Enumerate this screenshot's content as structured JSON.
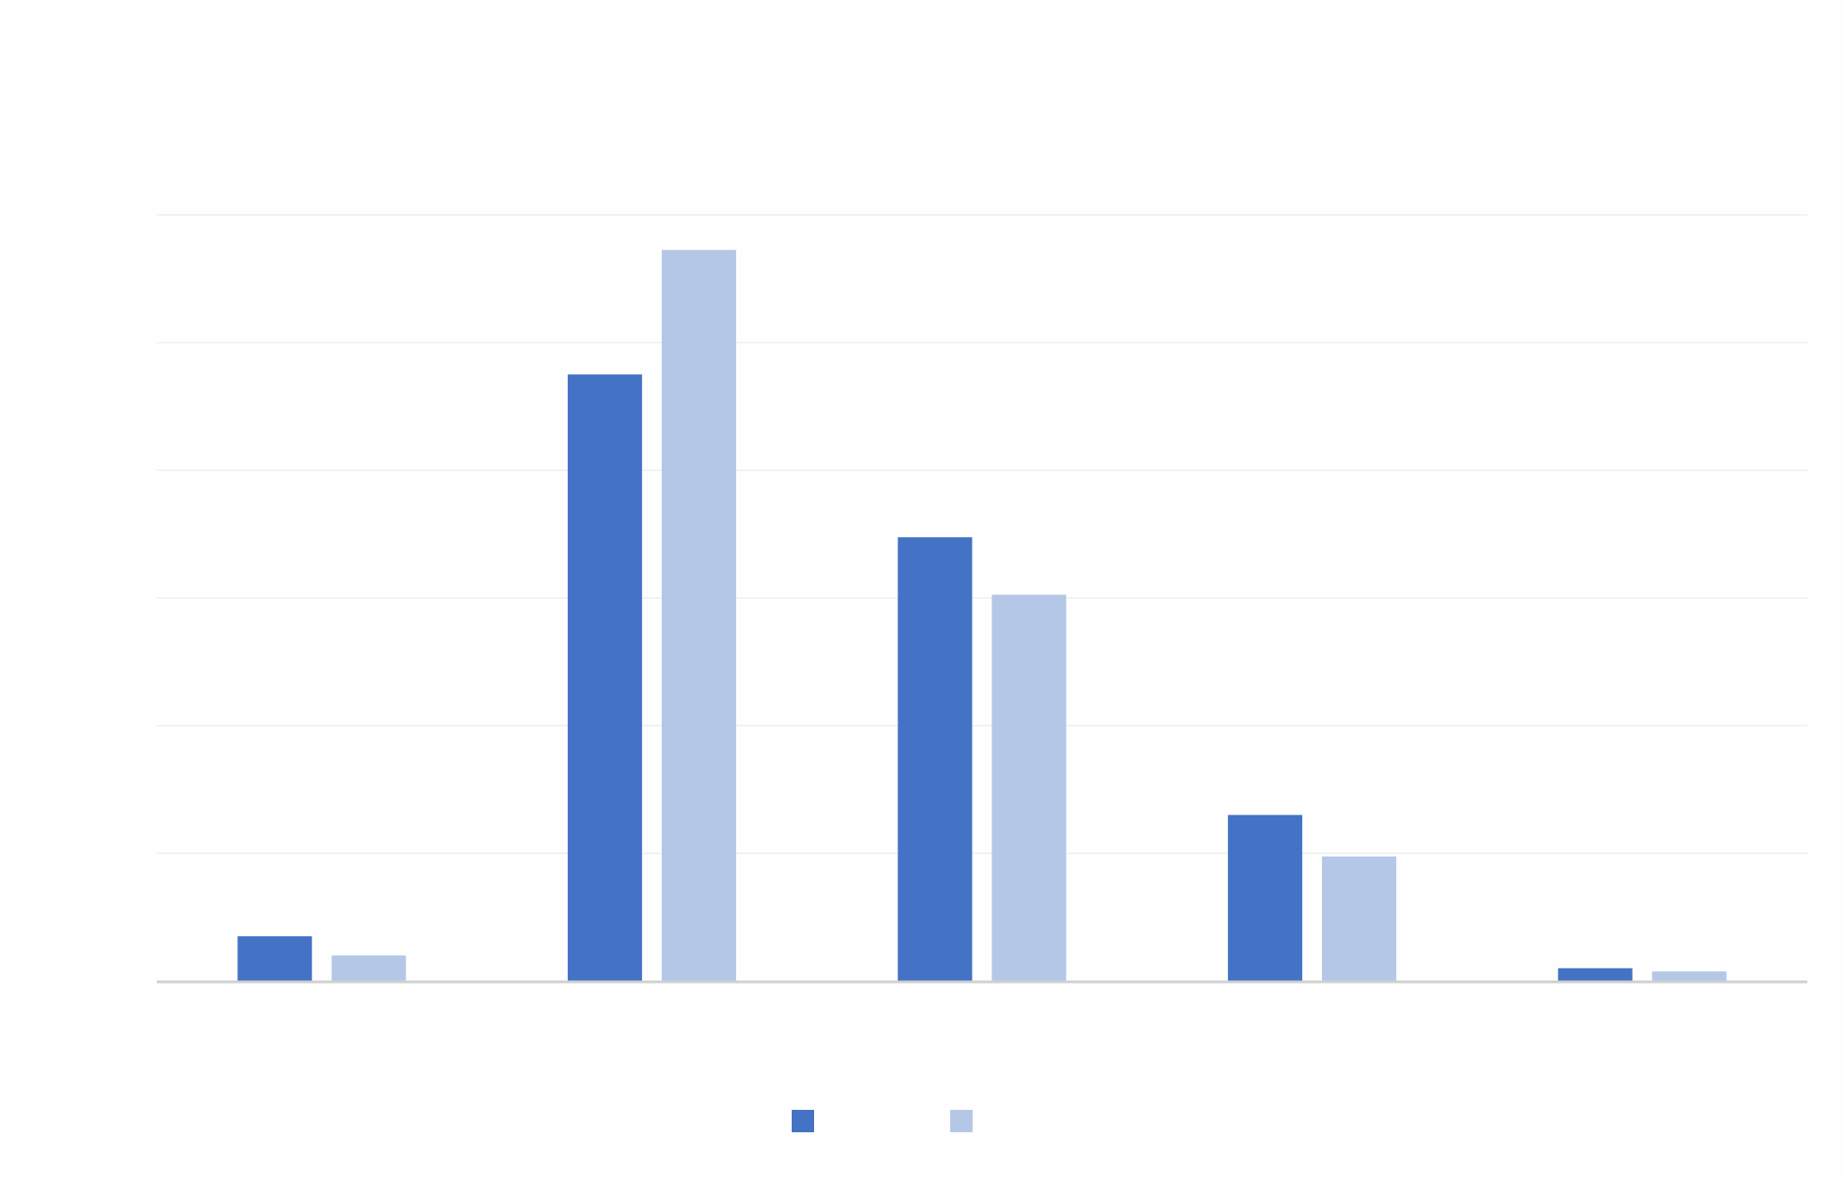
{
  "chart_data": {
    "type": "bar",
    "title": "",
    "xlabel": "",
    "ylabel": "",
    "categories": [
      "",
      "",
      "",
      "",
      ""
    ],
    "series": [
      {
        "values": [
          7,
          95,
          69.5,
          26,
          2
        ]
      },
      {
        "values": [
          4,
          114.5,
          60.5,
          19.5,
          1.5
        ]
      }
    ],
    "ylim": [
      0,
      120
    ],
    "y_gridline_step": 20,
    "grid": true,
    "legend": "bottom-center",
    "colors": [
      "#4472c4",
      "#b4c7e7"
    ],
    "gridline_color": "#eeeeee",
    "axis_color": "#d0d0d0"
  }
}
